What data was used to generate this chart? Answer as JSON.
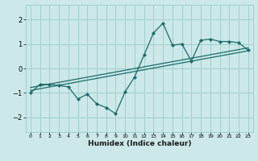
{
  "title": "",
  "xlabel": "Humidex (Indice chaleur)",
  "ylabel": "",
  "bg_color": "#cce8e8",
  "grid_color": "#99cccc",
  "line_color": "#1a6b6b",
  "xlim": [
    -0.5,
    23.5
  ],
  "ylim": [
    -2.6,
    2.6
  ],
  "xticks": [
    0,
    1,
    2,
    3,
    4,
    5,
    6,
    7,
    8,
    9,
    10,
    11,
    12,
    13,
    14,
    15,
    16,
    17,
    18,
    19,
    20,
    21,
    22,
    23
  ],
  "yticks": [
    -2,
    -1,
    0,
    1,
    2
  ],
  "data_line": [
    [
      0,
      -1.0
    ],
    [
      1,
      -0.65
    ],
    [
      2,
      -0.65
    ],
    [
      3,
      -0.7
    ],
    [
      4,
      -0.75
    ],
    [
      5,
      -1.25
    ],
    [
      6,
      -1.05
    ],
    [
      7,
      -1.45
    ],
    [
      8,
      -1.6
    ],
    [
      9,
      -1.85
    ],
    [
      10,
      -0.95
    ],
    [
      11,
      -0.35
    ],
    [
      12,
      0.55
    ],
    [
      13,
      1.45
    ],
    [
      14,
      1.85
    ],
    [
      15,
      0.95
    ],
    [
      16,
      1.0
    ],
    [
      17,
      0.3
    ],
    [
      18,
      1.15
    ],
    [
      19,
      1.2
    ],
    [
      20,
      1.1
    ],
    [
      21,
      1.1
    ],
    [
      22,
      1.05
    ],
    [
      23,
      0.75
    ]
  ],
  "regression_line": [
    [
      0,
      -0.9
    ],
    [
      23,
      0.72
    ]
  ],
  "regression_line2": [
    [
      0,
      -0.78
    ],
    [
      23,
      0.84
    ]
  ]
}
